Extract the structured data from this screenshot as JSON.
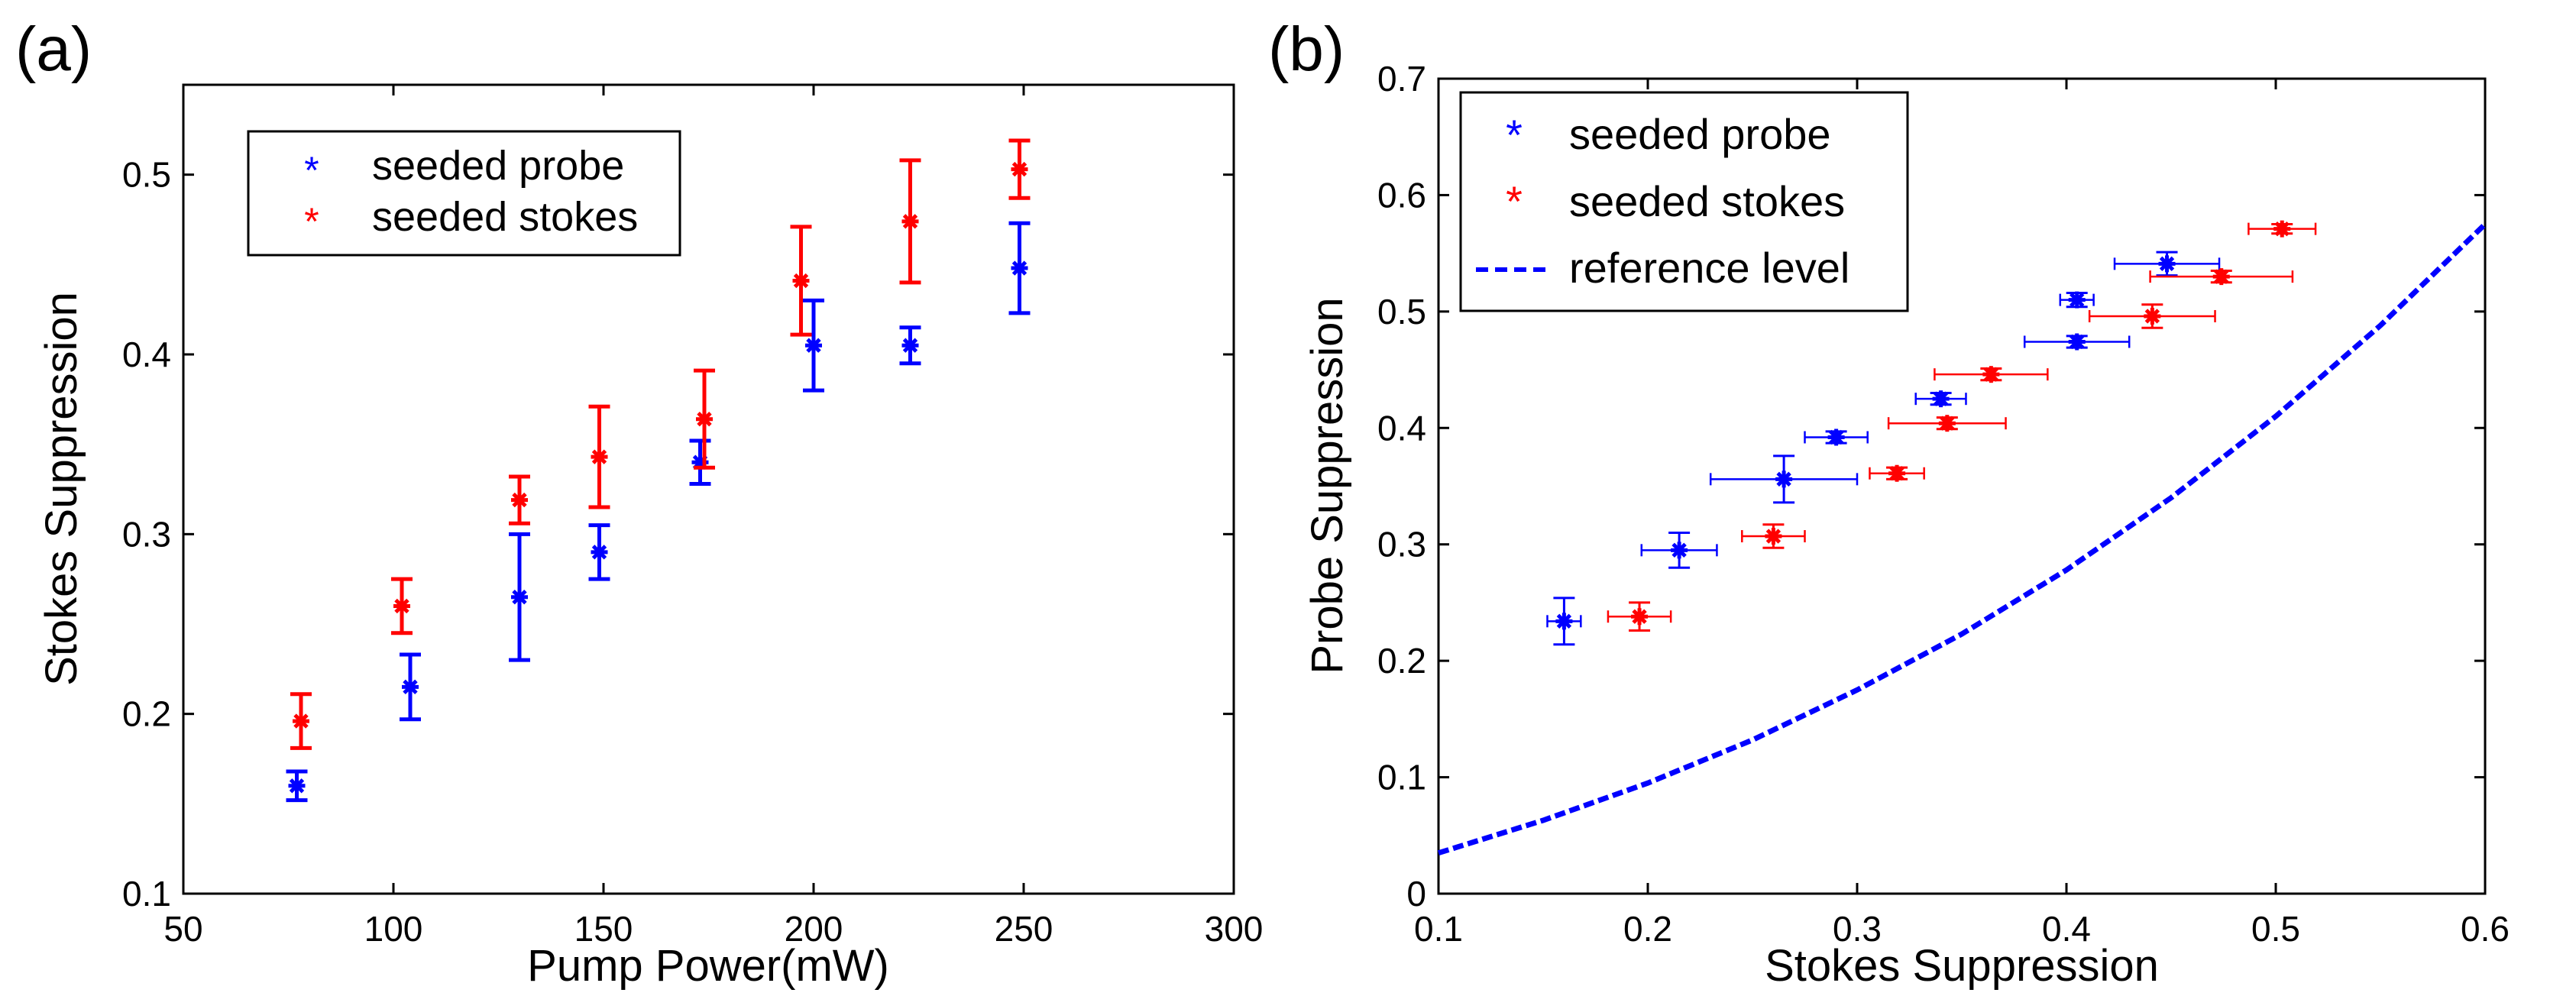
{
  "chart_data": [
    {
      "id": "a",
      "panel_label": "(a)",
      "type": "scatter",
      "title": "",
      "xlabel": "Pump Power(mW)",
      "ylabel": "Stokes Suppression",
      "xlim": [
        50,
        300
      ],
      "ylim": [
        0.1,
        0.55
      ],
      "xticks": [
        50,
        100,
        150,
        200,
        250,
        300
      ],
      "xtick_labels": [
        "50",
        "100",
        "150",
        "200",
        "250",
        "300"
      ],
      "yticks": [
        0.1,
        0.2,
        0.3,
        0.4,
        0.5
      ],
      "ytick_labels": [
        "0.1",
        "0.2",
        "0.3",
        "0.4",
        "0.5"
      ],
      "grid": false,
      "legend_position": "top-left",
      "series": [
        {
          "name": "seeded probe",
          "color": "#0000ff",
          "marker": "asterisk",
          "points": [
            {
              "x": 77,
              "y": 0.16,
              "yerr": 0.008
            },
            {
              "x": 104,
              "y": 0.215,
              "yerr": 0.018
            },
            {
              "x": 130,
              "y": 0.265,
              "yerr": 0.035
            },
            {
              "x": 149,
              "y": 0.29,
              "yerr": 0.015
            },
            {
              "x": 173,
              "y": 0.34,
              "yerr": 0.012
            },
            {
              "x": 200,
              "y": 0.405,
              "yerr": 0.025
            },
            {
              "x": 223,
              "y": 0.405,
              "yerr": 0.01
            },
            {
              "x": 249,
              "y": 0.448,
              "yerr": 0.025
            }
          ]
        },
        {
          "name": "seeded stokes",
          "color": "#ff0000",
          "marker": "asterisk",
          "points": [
            {
              "x": 78,
              "y": 0.196,
              "yerr": 0.015
            },
            {
              "x": 102,
              "y": 0.26,
              "yerr": 0.015
            },
            {
              "x": 130,
              "y": 0.319,
              "yerr": 0.013
            },
            {
              "x": 149,
              "y": 0.343,
              "yerr": 0.028
            },
            {
              "x": 174,
              "y": 0.364,
              "yerr": 0.027
            },
            {
              "x": 197,
              "y": 0.441,
              "yerr": 0.03
            },
            {
              "x": 223,
              "y": 0.474,
              "yerr": 0.034
            },
            {
              "x": 249,
              "y": 0.503,
              "yerr": 0.016
            }
          ]
        }
      ]
    },
    {
      "id": "b",
      "panel_label": "(b)",
      "type": "scatter",
      "title": "",
      "xlabel": "Stokes Suppression",
      "ylabel": "Probe Suppression",
      "xlim": [
        0.1,
        0.6
      ],
      "ylim": [
        0,
        0.7
      ],
      "xticks": [
        0.1,
        0.2,
        0.3,
        0.4,
        0.5,
        0.6
      ],
      "xtick_labels": [
        "0.1",
        "0.2",
        "0.3",
        "0.4",
        "0.5",
        "0.6"
      ],
      "yticks": [
        0,
        0.1,
        0.2,
        0.3,
        0.4,
        0.5,
        0.6,
        0.7
      ],
      "ytick_labels": [
        "0",
        "0.1",
        "0.2",
        "0.3",
        "0.4",
        "0.5",
        "0.6",
        "0.7"
      ],
      "grid": false,
      "legend_position": "top-left",
      "series": [
        {
          "name": "seeded probe",
          "color": "#0000ff",
          "marker": "asterisk",
          "points": [
            {
              "x": 0.16,
              "y": 0.234,
              "xerr": 0.008,
              "yerr": 0.02
            },
            {
              "x": 0.215,
              "y": 0.295,
              "xerr": 0.018,
              "yerr": 0.015
            },
            {
              "x": 0.265,
              "y": 0.356,
              "xerr": 0.035,
              "yerr": 0.02
            },
            {
              "x": 0.29,
              "y": 0.392,
              "xerr": 0.015,
              "yerr": 0.005
            },
            {
              "x": 0.34,
              "y": 0.425,
              "xerr": 0.012,
              "yerr": 0.005
            },
            {
              "x": 0.405,
              "y": 0.474,
              "xerr": 0.025,
              "yerr": 0.005
            },
            {
              "x": 0.405,
              "y": 0.51,
              "xerr": 0.008,
              "yerr": 0.006
            },
            {
              "x": 0.448,
              "y": 0.541,
              "xerr": 0.025,
              "yerr": 0.01
            }
          ]
        },
        {
          "name": "seeded stokes",
          "color": "#ff0000",
          "marker": "asterisk",
          "points": [
            {
              "x": 0.196,
              "y": 0.238,
              "xerr": 0.015,
              "yerr": 0.012
            },
            {
              "x": 0.26,
              "y": 0.307,
              "xerr": 0.015,
              "yerr": 0.01
            },
            {
              "x": 0.319,
              "y": 0.361,
              "xerr": 0.013,
              "yerr": 0.005
            },
            {
              "x": 0.343,
              "y": 0.404,
              "xerr": 0.028,
              "yerr": 0.005
            },
            {
              "x": 0.364,
              "y": 0.446,
              "xerr": 0.027,
              "yerr": 0.005
            },
            {
              "x": 0.441,
              "y": 0.496,
              "xerr": 0.03,
              "yerr": 0.01
            },
            {
              "x": 0.474,
              "y": 0.53,
              "xerr": 0.034,
              "yerr": 0.005
            },
            {
              "x": 0.503,
              "y": 0.571,
              "xerr": 0.016,
              "yerr": 0.004
            }
          ]
        },
        {
          "name": "reference level",
          "color": "#0000ff",
          "type": "line",
          "style": "dashed",
          "x": [
            0.1,
            0.15,
            0.2,
            0.25,
            0.3,
            0.35,
            0.4,
            0.45,
            0.5,
            0.55,
            0.6
          ],
          "y": [
            0.035,
            0.063,
            0.095,
            0.132,
            0.175,
            0.223,
            0.278,
            0.34,
            0.41,
            0.488,
            0.575
          ]
        }
      ]
    }
  ]
}
